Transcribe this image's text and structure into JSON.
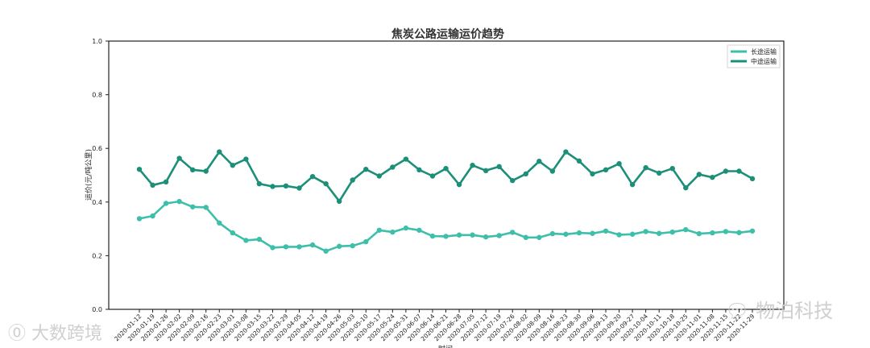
{
  "chart_data": {
    "type": "line",
    "title": "焦炭公路运输运价趋势",
    "xlabel": "时间",
    "ylabel": "运价(元/吨公里)",
    "ylim": [
      0.0,
      1.0
    ],
    "yticks": [
      "0.0",
      "0.2",
      "0.4",
      "0.6",
      "0.8",
      "1.0"
    ],
    "grid": false,
    "legend_position": "top-right",
    "x": [
      "2020-01-12",
      "2020-01-19",
      "2020-01-26",
      "2020-02-02",
      "2020-02-09",
      "2020-02-16",
      "2020-02-23",
      "2020-03-01",
      "2020-03-08",
      "2020-03-15",
      "2020-03-22",
      "2020-03-29",
      "2020-04-05",
      "2020-04-12",
      "2020-04-19",
      "2020-04-26",
      "2020-05-03",
      "2020-05-10",
      "2020-05-17",
      "2020-05-24",
      "2020-05-31",
      "2020-06-07",
      "2020-06-14",
      "2020-06-21",
      "2020-06-28",
      "2020-07-05",
      "2020-07-12",
      "2020-07-19",
      "2020-07-26",
      "2020-08-02",
      "2020-08-09",
      "2020-08-16",
      "2020-08-23",
      "2020-08-30",
      "2020-09-06",
      "2020-09-13",
      "2020-09-20",
      "2020-09-27",
      "2020-10-04",
      "2020-10-11",
      "2020-10-18",
      "2020-10-25",
      "2020-11-01",
      "2020-11-08",
      "2020-11-15",
      "2020-11-22",
      "2020-11-29"
    ],
    "x_tick_labels": [
      "2020-01-12",
      "2020-01-19",
      "2020-01-26",
      "2020-02-02",
      "2020-02-09",
      "2020-02-16",
      "2020-02-23",
      "2020-03-01",
      "2020-03-08",
      "2020-03-15",
      "2020-03-22",
      "2020-03-29",
      "2020-04-05",
      "2020-04-12",
      "2020-04-19",
      "2020-04-26",
      "2020-05-03",
      "2020-05-10",
      "2020-05-17",
      "2020-05-24",
      "2020-05-31",
      "2020-06-07",
      "2020-06-14",
      "2020-06-21",
      "2020-06-28",
      "2020-07-05",
      "2020-07-12",
      "2020-07-19",
      "2020-07-26",
      "2020-08-02",
      "2020-08-09",
      "2020-08-16",
      "2020-08-23",
      "2020-08-30",
      "2020-09-06",
      "2020-09-13",
      "2020-09-20",
      "2020-09-27",
      "2020-10-04",
      "2020-10-11",
      "2020-10-18",
      "2020-10-25",
      "2020-11-01",
      "2020-11-08",
      "2020-11-15",
      "2020-11-22",
      "2020-11-29"
    ],
    "series": [
      {
        "name": "长途运输",
        "color": "#3dbfaa",
        "values": [
          0.338,
          0.348,
          0.395,
          0.402,
          0.382,
          0.38,
          0.322,
          0.285,
          0.257,
          0.261,
          0.23,
          0.233,
          0.233,
          0.24,
          0.217,
          0.235,
          0.237,
          0.252,
          0.295,
          0.288,
          0.303,
          0.295,
          0.273,
          0.272,
          0.277,
          0.277,
          0.27,
          0.275,
          0.287,
          0.268,
          0.268,
          0.282,
          0.28,
          0.285,
          0.283,
          0.292,
          0.278,
          0.28,
          0.29,
          0.283,
          0.288,
          0.297,
          0.282,
          0.285,
          0.29,
          0.286,
          0.292
        ]
      },
      {
        "name": "中途运输",
        "color": "#1c8f78",
        "values": [
          0.522,
          0.463,
          0.475,
          0.563,
          0.52,
          0.515,
          0.587,
          0.537,
          0.56,
          0.468,
          0.458,
          0.46,
          0.452,
          0.495,
          0.468,
          0.403,
          0.482,
          0.522,
          0.497,
          0.53,
          0.56,
          0.52,
          0.497,
          0.525,
          0.465,
          0.537,
          0.517,
          0.532,
          0.48,
          0.505,
          0.552,
          0.515,
          0.587,
          0.553,
          0.505,
          0.52,
          0.543,
          0.465,
          0.528,
          0.508,
          0.525,
          0.453,
          0.503,
          0.492,
          0.515,
          0.515,
          0.487
        ]
      }
    ]
  },
  "watermarks": {
    "left_text": "大数跨境",
    "right_text": "物泊科技"
  }
}
